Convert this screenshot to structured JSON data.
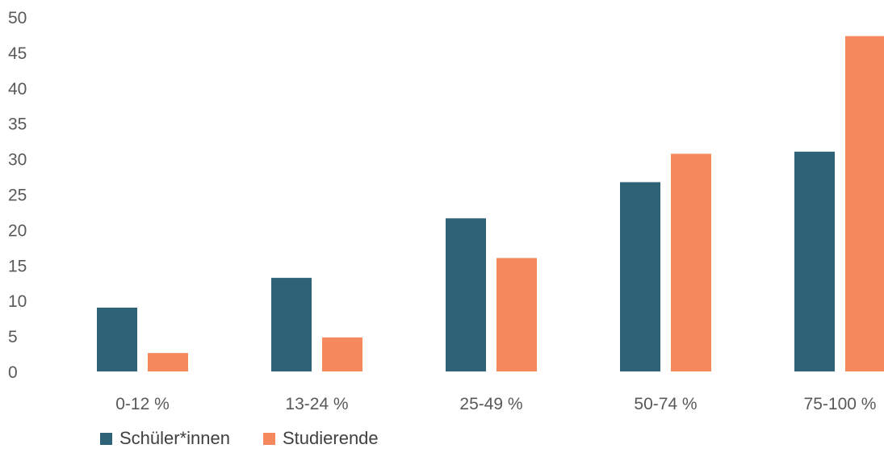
{
  "chart_data": {
    "type": "bar",
    "categories": [
      "0-12 %",
      "13-24 %",
      "25-49 %",
      "50-74 %",
      "75-100 %"
    ],
    "series": [
      {
        "name": "Schüler*innen",
        "color": "#2e6377",
        "values": [
          9,
          13.2,
          21.6,
          26.7,
          31
        ]
      },
      {
        "name": "Studierende",
        "color": "#f5885d",
        "values": [
          2.6,
          4.8,
          16,
          30.7,
          47.3
        ]
      }
    ],
    "y_ticks": [
      0,
      5,
      10,
      15,
      20,
      25,
      30,
      35,
      40,
      45,
      50
    ],
    "ylim": [
      0,
      50
    ],
    "grid": false,
    "legend_position": "bottom-left"
  }
}
